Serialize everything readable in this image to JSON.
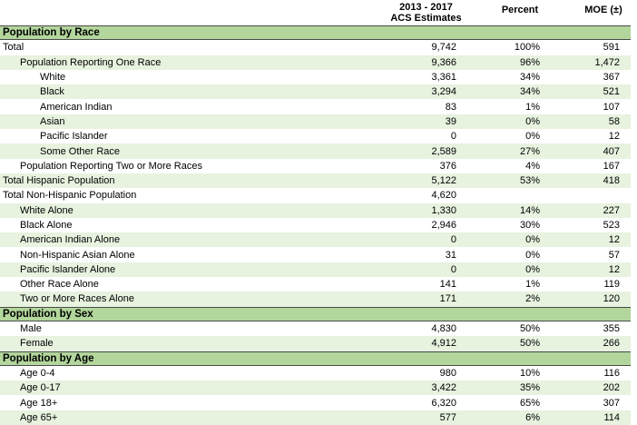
{
  "colors": {
    "section_bg": "#b2d69c",
    "stripe_bg": "#e7f2df",
    "section_border": "#4a4a4a",
    "background": "#ffffff",
    "text": "#000000"
  },
  "chart_data": {
    "type": "table",
    "column_headers": {
      "label": "",
      "estimates_line1": "2013 - 2017",
      "estimates_line2": "ACS Estimates",
      "percent": "Percent",
      "moe": "MOE (±)"
    },
    "rows": [
      {
        "type": "section",
        "label": "Population by Race"
      },
      {
        "type": "data",
        "indent": 0,
        "label": "Total",
        "estimate": "9,742",
        "percent": "100%",
        "moe": "591"
      },
      {
        "type": "data",
        "indent": 1,
        "label": "Population Reporting One Race",
        "estimate": "9,366",
        "percent": "96%",
        "moe": "1,472"
      },
      {
        "type": "data",
        "indent": 2,
        "label": "White",
        "estimate": "3,361",
        "percent": "34%",
        "moe": "367"
      },
      {
        "type": "data",
        "indent": 2,
        "label": "Black",
        "estimate": "3,294",
        "percent": "34%",
        "moe": "521"
      },
      {
        "type": "data",
        "indent": 2,
        "label": "American Indian",
        "estimate": "83",
        "percent": "1%",
        "moe": "107"
      },
      {
        "type": "data",
        "indent": 2,
        "label": "Asian",
        "estimate": "39",
        "percent": "0%",
        "moe": "58"
      },
      {
        "type": "data",
        "indent": 2,
        "label": "Pacific Islander",
        "estimate": "0",
        "percent": "0%",
        "moe": "12"
      },
      {
        "type": "data",
        "indent": 2,
        "label": "Some Other Race",
        "estimate": "2,589",
        "percent": "27%",
        "moe": "407"
      },
      {
        "type": "data",
        "indent": 1,
        "label": "Population Reporting Two or More Races",
        "estimate": "376",
        "percent": "4%",
        "moe": "167"
      },
      {
        "type": "data",
        "indent": 0,
        "label": "Total Hispanic Population",
        "estimate": "5,122",
        "percent": "53%",
        "moe": "418"
      },
      {
        "type": "data",
        "indent": 0,
        "label": "Total Non-Hispanic Population",
        "estimate": "4,620",
        "percent": "",
        "moe": ""
      },
      {
        "type": "data",
        "indent": 1,
        "label": "White Alone",
        "estimate": "1,330",
        "percent": "14%",
        "moe": "227"
      },
      {
        "type": "data",
        "indent": 1,
        "label": "Black Alone",
        "estimate": "2,946",
        "percent": "30%",
        "moe": "523"
      },
      {
        "type": "data",
        "indent": 1,
        "label": "American Indian Alone",
        "estimate": "0",
        "percent": "0%",
        "moe": "12"
      },
      {
        "type": "data",
        "indent": 1,
        "label": "Non-Hispanic Asian Alone",
        "estimate": "31",
        "percent": "0%",
        "moe": "57"
      },
      {
        "type": "data",
        "indent": 1,
        "label": "Pacific Islander Alone",
        "estimate": "0",
        "percent": "0%",
        "moe": "12"
      },
      {
        "type": "data",
        "indent": 1,
        "label": "Other Race Alone",
        "estimate": "141",
        "percent": "1%",
        "moe": "119"
      },
      {
        "type": "data",
        "indent": 1,
        "label": "Two or More Races Alone",
        "estimate": "171",
        "percent": "2%",
        "moe": "120"
      },
      {
        "type": "section",
        "label": "Population by Sex"
      },
      {
        "type": "data",
        "indent": 1,
        "label": "Male",
        "estimate": "4,830",
        "percent": "50%",
        "moe": "355"
      },
      {
        "type": "data",
        "indent": 1,
        "label": "Female",
        "estimate": "4,912",
        "percent": "50%",
        "moe": "266"
      },
      {
        "type": "section",
        "label": "Population by Age"
      },
      {
        "type": "data",
        "indent": 1,
        "label": "Age 0-4",
        "estimate": "980",
        "percent": "10%",
        "moe": "116"
      },
      {
        "type": "data",
        "indent": 1,
        "label": "Age 0-17",
        "estimate": "3,422",
        "percent": "35%",
        "moe": "202"
      },
      {
        "type": "data",
        "indent": 1,
        "label": "Age 18+",
        "estimate": "6,320",
        "percent": "65%",
        "moe": "307"
      },
      {
        "type": "data",
        "indent": 1,
        "label": "Age 65+",
        "estimate": "577",
        "percent": "6%",
        "moe": "114"
      }
    ]
  }
}
